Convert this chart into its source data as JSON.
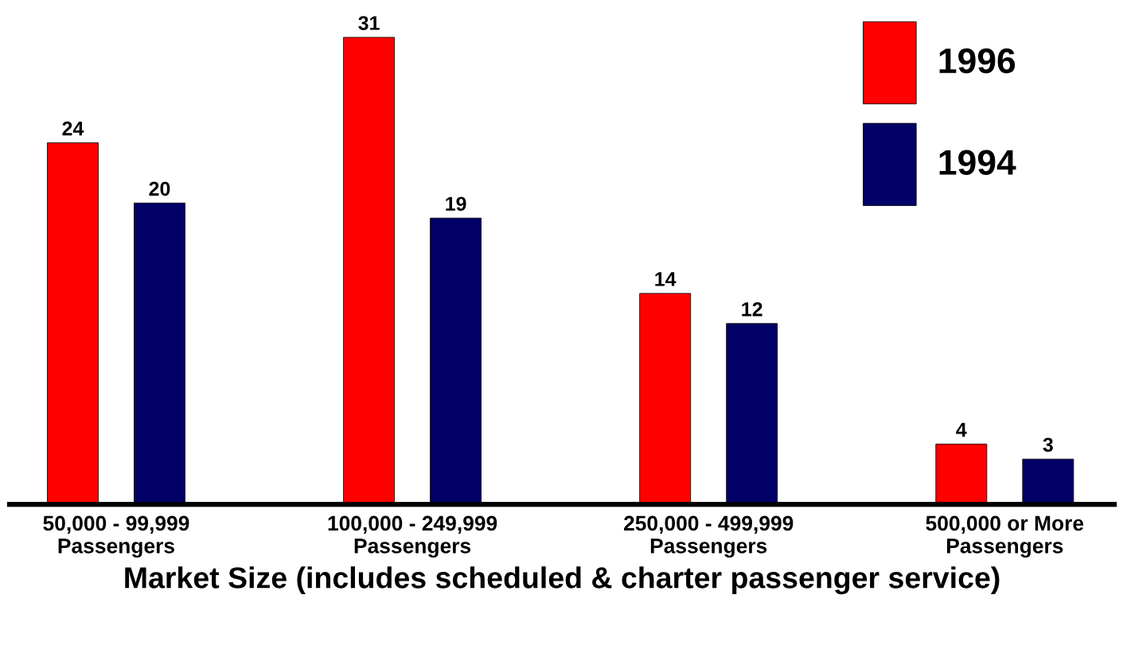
{
  "chart_data": {
    "type": "bar",
    "xlabel": "Market Size (includes scheduled & charter passenger service)",
    "categories": [
      "50,000 - 99,999\nPassengers",
      "100,000 - 249,999\nPassengers",
      "250,000 - 499,999\nPassengers",
      "500,000 or More\nPassengers"
    ],
    "series": [
      {
        "name": "1996",
        "color": "#ff0000",
        "values": [
          24,
          31,
          14,
          4
        ]
      },
      {
        "name": "1994",
        "color": "#000066",
        "values": [
          20,
          19,
          12,
          3
        ]
      }
    ],
    "data_labels": true,
    "legend": "top right",
    "grid": false
  }
}
